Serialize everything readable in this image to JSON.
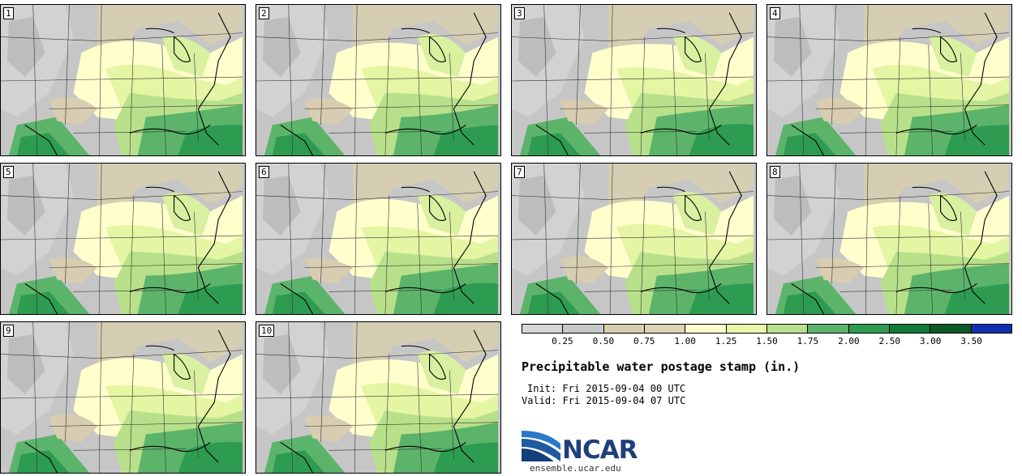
{
  "members": [
    {
      "number": "1"
    },
    {
      "number": "2"
    },
    {
      "number": "3"
    },
    {
      "number": "4"
    },
    {
      "number": "5"
    },
    {
      "number": "6"
    },
    {
      "number": "7"
    },
    {
      "number": "8"
    },
    {
      "number": "9"
    },
    {
      "number": "10"
    }
  ],
  "legend": {
    "colors": [
      "#d6d6d6",
      "#c8c8c8",
      "#d8cdb0",
      "#ded3b2",
      "#ffffcc",
      "#e8f8a8",
      "#b9e08c",
      "#5cb46a",
      "#2e9c50",
      "#107a38",
      "#0a5a28",
      "#1030b0"
    ],
    "ticks": [
      "0.25",
      "0.50",
      "0.75",
      "1.00",
      "1.25",
      "1.50",
      "1.75",
      "2.00",
      "2.50",
      "3.00",
      "3.50"
    ]
  },
  "title": "Precipitable water postage stamp (in.)",
  "init": "Init: Fri 2015-09-04 00 UTC",
  "valid": "Valid: Fri 2015-09-04 07 UTC",
  "logo": {
    "text": "NCAR",
    "site": "ensemble.ucar.edu"
  }
}
